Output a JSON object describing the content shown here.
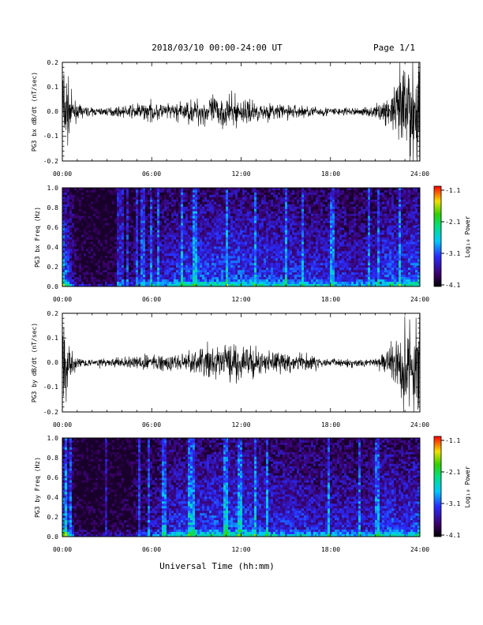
{
  "header": {
    "title": "2018/03/10  00:00-24:00 UT",
    "page_label": "Page 1/1"
  },
  "footer": {
    "xlabel": "Universal Time (hh:mm)"
  },
  "colorbar": {
    "label": "Log₁₀ Power",
    "ticks": [
      "-1.1",
      "-2.1",
      "-3.1",
      "-4.1"
    ],
    "range": [
      -4.1,
      -1.1
    ]
  },
  "chart_data": [
    {
      "type": "line",
      "ylabel": "PG3 bx dB/dt (nT/sec)",
      "xlim": [
        "00:00",
        "24:00"
      ],
      "x_tick_labels": [
        "00:00",
        "06:00",
        "12:00",
        "18:00",
        "24:00"
      ],
      "ylim": [
        -0.2,
        0.2
      ],
      "y_tick_labels": [
        "0.2",
        "0.1",
        "0.0",
        "-0.1",
        "-0.2"
      ],
      "x_hours": [
        0,
        0.5,
        1,
        2,
        3,
        4,
        5,
        6,
        7,
        8,
        9,
        10,
        11,
        12,
        13,
        14,
        15,
        16,
        17,
        18,
        19,
        20,
        21,
        21.5,
        22,
        22.5,
        23,
        23.5,
        24
      ],
      "amplitude_envelope": [
        0.2,
        0.06,
        0.02,
        0.012,
        0.012,
        0.015,
        0.025,
        0.03,
        0.025,
        0.03,
        0.04,
        0.05,
        0.05,
        0.045,
        0.03,
        0.025,
        0.025,
        0.02,
        0.015,
        0.015,
        0.012,
        0.012,
        0.02,
        0.03,
        0.05,
        0.1,
        0.2,
        0.2,
        0.2
      ]
    },
    {
      "type": "heatmap",
      "ylabel": "PG3 bx Freq (Hz)",
      "xlim": [
        "00:00",
        "24:00"
      ],
      "x_tick_labels": [
        "00:00",
        "06:00",
        "12:00",
        "18:00",
        "24:00"
      ],
      "ylim": [
        0.0,
        1.0
      ],
      "y_tick_labels": [
        "1.0",
        "0.8",
        "0.6",
        "0.4",
        "0.2",
        "0.0"
      ],
      "color_scale": "log10 power",
      "x_hours": [
        0,
        0.5,
        1,
        2,
        3,
        4,
        5,
        6,
        7,
        8,
        9,
        10,
        11,
        12,
        13,
        14,
        15,
        16,
        17,
        18,
        19,
        20,
        21,
        21.5,
        22,
        22.5,
        23,
        23.5,
        24
      ],
      "activity_envelope": [
        0.9,
        0.45,
        0.15,
        0.1,
        0.1,
        0.15,
        0.3,
        0.4,
        0.45,
        0.55,
        0.6,
        0.6,
        0.6,
        0.6,
        0.55,
        0.55,
        0.55,
        0.5,
        0.5,
        0.5,
        0.45,
        0.45,
        0.45,
        0.55,
        0.6,
        0.55,
        0.55,
        0.6,
        0.7
      ]
    },
    {
      "type": "line",
      "ylabel": "PG3 by dB/dt (nT/sec)",
      "xlim": [
        "00:00",
        "24:00"
      ],
      "x_tick_labels": [
        "00:00",
        "06:00",
        "12:00",
        "18:00",
        "24:00"
      ],
      "ylim": [
        -0.2,
        0.2
      ],
      "y_tick_labels": [
        "0.2",
        "0.1",
        "0.0",
        "-0.1",
        "-0.2"
      ],
      "x_hours": [
        0,
        0.5,
        1,
        2,
        3,
        4,
        5,
        6,
        7,
        8,
        9,
        10,
        11,
        12,
        13,
        14,
        15,
        16,
        17,
        18,
        19,
        20,
        21,
        21.5,
        22,
        22.5,
        23,
        23.5,
        24
      ],
      "amplitude_envelope": [
        0.15,
        0.05,
        0.015,
        0.012,
        0.012,
        0.015,
        0.02,
        0.025,
        0.025,
        0.03,
        0.04,
        0.05,
        0.06,
        0.055,
        0.04,
        0.035,
        0.03,
        0.025,
        0.02,
        0.015,
        0.012,
        0.012,
        0.015,
        0.03,
        0.05,
        0.1,
        0.2,
        0.2,
        0.2
      ]
    },
    {
      "type": "heatmap",
      "ylabel": "PG3 by Freq (Hz)",
      "xlim": [
        "00:00",
        "24:00"
      ],
      "x_tick_labels": [
        "00:00",
        "06:00",
        "12:00",
        "18:00",
        "24:00"
      ],
      "ylim": [
        0.0,
        1.0
      ],
      "y_tick_labels": [
        "1.0",
        "0.8",
        "0.6",
        "0.4",
        "0.2",
        "0.0"
      ],
      "color_scale": "log10 power",
      "x_hours": [
        0,
        0.5,
        1,
        2,
        3,
        4,
        5,
        6,
        7,
        8,
        9,
        10,
        11,
        12,
        13,
        14,
        15,
        16,
        17,
        18,
        19,
        20,
        21,
        21.5,
        22,
        22.5,
        23,
        23.5,
        24
      ],
      "activity_envelope": [
        0.85,
        0.4,
        0.1,
        0.08,
        0.08,
        0.1,
        0.2,
        0.35,
        0.45,
        0.55,
        0.55,
        0.6,
        0.6,
        0.6,
        0.55,
        0.5,
        0.5,
        0.5,
        0.45,
        0.45,
        0.45,
        0.4,
        0.45,
        0.55,
        0.6,
        0.5,
        0.5,
        0.55,
        0.65
      ]
    }
  ]
}
